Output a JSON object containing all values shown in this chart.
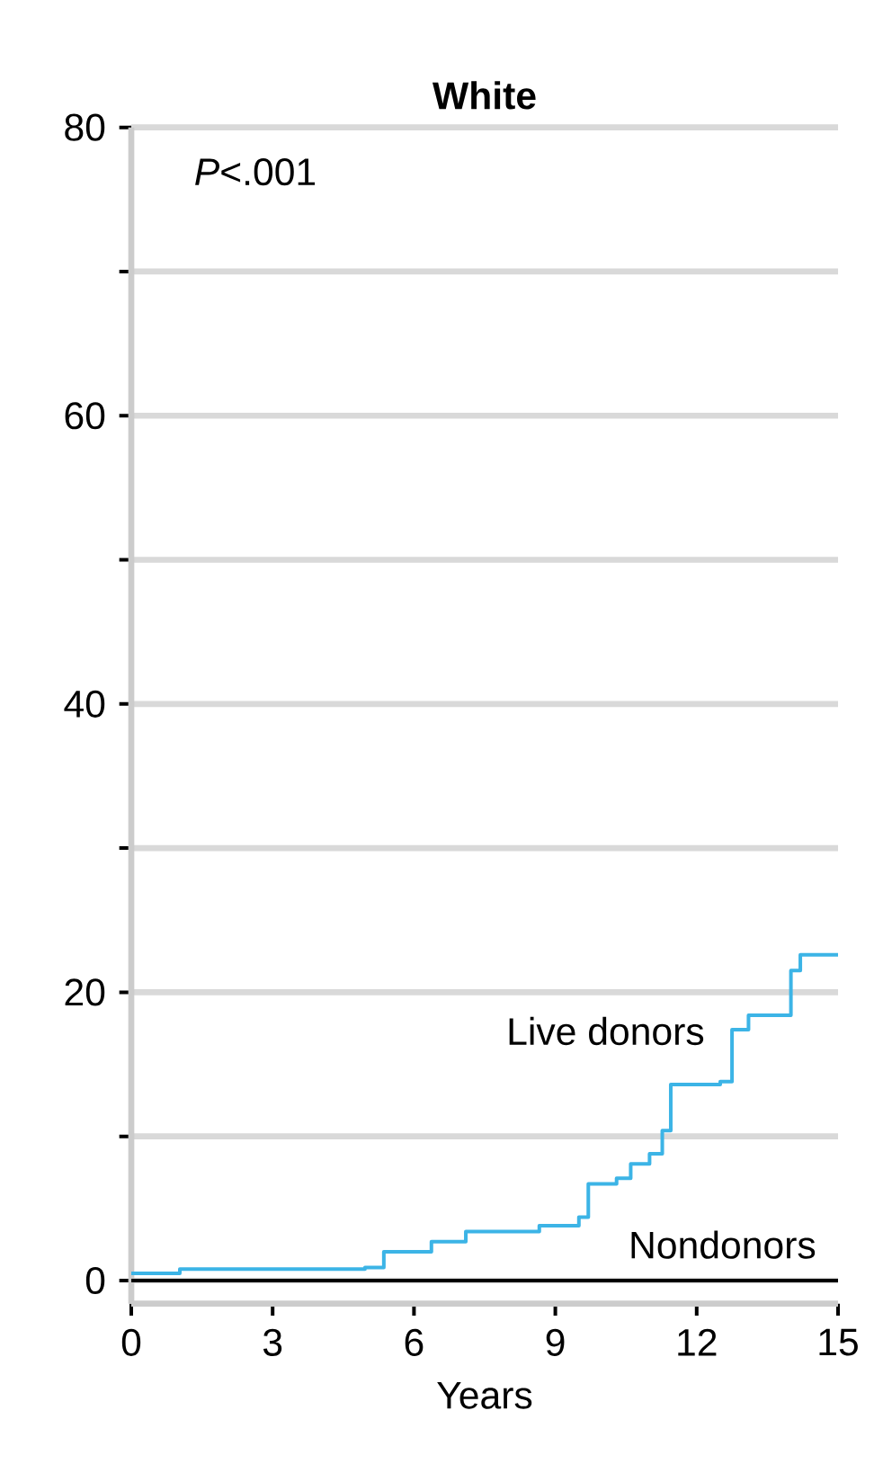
{
  "chart_data": {
    "type": "step",
    "title": "White",
    "xlabel": "Years",
    "annotations": [
      "*P*<.001"
    ],
    "x": [
      0,
      1.03,
      4.96,
      5.36,
      6.37,
      7.1,
      8.4,
      8.66,
      9.5,
      9.7,
      10.3,
      10.6,
      11.0,
      11.27,
      11.45,
      12.5,
      12.75,
      13.1,
      13.6,
      14.0,
      14.2,
      15
    ],
    "series": [
      {
        "name": "Live donors",
        "color": "#3cb4e6",
        "values": [
          0.5,
          0.8,
          0.9,
          2.0,
          2.7,
          3.4,
          3.4,
          3.8,
          4.4,
          6.7,
          7.1,
          8.1,
          8.8,
          10.4,
          13.6,
          13.8,
          17.4,
          18.4,
          18.4,
          21.5,
          22.6,
          22.6
        ]
      },
      {
        "name": "Nondonors",
        "color": "#000000",
        "x": [
          0,
          15
        ],
        "values": [
          0,
          0
        ]
      }
    ],
    "xlim": [
      0,
      15
    ],
    "xticks": [
      0,
      3,
      6,
      9,
      12,
      15
    ],
    "ylim": [
      -1.6,
      80
    ],
    "yticks": [
      0,
      {
        "value": 10,
        "label": null
      },
      20,
      {
        "value": 30,
        "label": null
      },
      40,
      {
        "value": 50,
        "label": null
      },
      60,
      {
        "value": 70,
        "label": null
      },
      80
    ],
    "grid": "y",
    "marker": "none",
    "line_style": "solid"
  }
}
